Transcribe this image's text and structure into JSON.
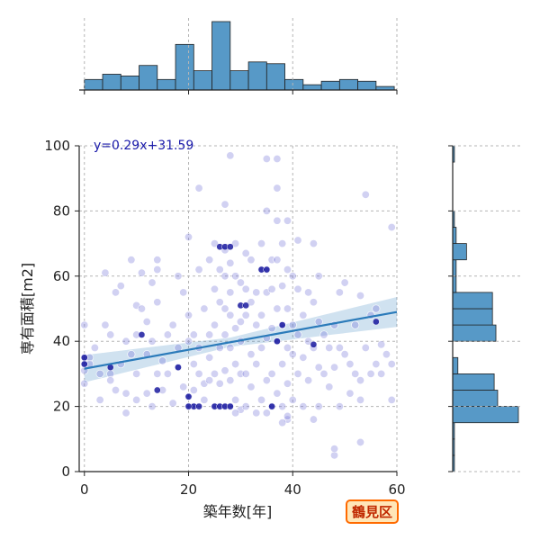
{
  "chart_data": {
    "type": "scatter",
    "xlabel": "築年数[年]",
    "ylabel": "専有面積[m2]",
    "xlim": [
      -1,
      60
    ],
    "ylim": [
      0,
      100
    ],
    "x_ticks": [
      0,
      20,
      40,
      60
    ],
    "y_ticks": [
      0,
      20,
      40,
      60,
      80,
      100
    ],
    "grid": true,
    "regression": {
      "label": "y=0.29x+31.59",
      "slope": 0.29,
      "intercept": 31.59,
      "color": "#2b7bba"
    },
    "badge": "鶴見区",
    "colors": {
      "points": "#6f6fd8",
      "dense_points": "#0b0b99",
      "hist": "#5799c7",
      "edge": "#222222"
    },
    "points": [
      [
        0,
        27
      ],
      [
        0,
        31
      ],
      [
        0,
        33
      ],
      [
        0,
        35
      ],
      [
        0,
        45
      ],
      [
        1,
        35
      ],
      [
        1,
        33
      ],
      [
        2,
        38
      ],
      [
        3,
        22
      ],
      [
        3,
        30
      ],
      [
        4,
        61
      ],
      [
        4,
        45
      ],
      [
        5,
        42
      ],
      [
        5,
        30
      ],
      [
        5,
        28
      ],
      [
        6,
        25
      ],
      [
        6,
        55
      ],
      [
        7,
        57
      ],
      [
        7,
        33
      ],
      [
        8,
        40
      ],
      [
        8,
        24
      ],
      [
        8,
        18
      ],
      [
        9,
        65
      ],
      [
        9,
        36
      ],
      [
        10,
        51
      ],
      [
        10,
        42
      ],
      [
        10,
        30
      ],
      [
        10,
        22
      ],
      [
        11,
        61
      ],
      [
        11,
        50
      ],
      [
        12,
        46
      ],
      [
        12,
        36
      ],
      [
        12,
        24
      ],
      [
        13,
        58
      ],
      [
        13,
        40
      ],
      [
        13,
        20
      ],
      [
        14,
        65
      ],
      [
        14,
        62
      ],
      [
        14,
        52
      ],
      [
        14,
        30
      ],
      [
        15,
        34
      ],
      [
        15,
        25
      ],
      [
        16,
        42
      ],
      [
        16,
        30
      ],
      [
        17,
        45
      ],
      [
        17,
        21
      ],
      [
        18,
        60
      ],
      [
        18,
        38
      ],
      [
        18,
        32
      ],
      [
        19,
        55
      ],
      [
        19,
        26
      ],
      [
        20,
        72
      ],
      [
        20,
        48
      ],
      [
        20,
        40
      ],
      [
        20,
        23
      ],
      [
        20,
        20
      ],
      [
        21,
        42
      ],
      [
        21,
        33
      ],
      [
        21,
        25
      ],
      [
        21,
        20
      ],
      [
        22,
        87
      ],
      [
        22,
        62
      ],
      [
        22,
        38
      ],
      [
        22,
        30
      ],
      [
        23,
        50
      ],
      [
        23,
        27
      ],
      [
        23,
        22
      ],
      [
        24,
        65
      ],
      [
        24,
        42
      ],
      [
        24,
        35
      ],
      [
        24,
        28
      ],
      [
        25,
        70
      ],
      [
        25,
        56
      ],
      [
        25,
        45
      ],
      [
        25,
        30
      ],
      [
        25,
        20
      ],
      [
        26,
        62
      ],
      [
        26,
        52
      ],
      [
        26,
        38
      ],
      [
        26,
        27
      ],
      [
        26,
        20
      ],
      [
        27,
        82
      ],
      [
        27,
        68
      ],
      [
        27,
        60
      ],
      [
        27,
        50
      ],
      [
        27,
        42
      ],
      [
        27,
        31
      ],
      [
        27,
        20
      ],
      [
        28,
        97
      ],
      [
        28,
        64
      ],
      [
        28,
        55
      ],
      [
        28,
        48
      ],
      [
        28,
        38
      ],
      [
        28,
        28
      ],
      [
        28,
        20
      ],
      [
        29,
        70
      ],
      [
        29,
        60
      ],
      [
        29,
        44
      ],
      [
        29,
        33
      ],
      [
        29,
        22
      ],
      [
        30,
        58
      ],
      [
        30,
        46
      ],
      [
        30,
        40
      ],
      [
        30,
        30
      ],
      [
        30,
        19
      ],
      [
        31,
        67
      ],
      [
        31,
        56
      ],
      [
        31,
        48
      ],
      [
        31,
        30
      ],
      [
        31,
        20
      ],
      [
        32,
        65
      ],
      [
        32,
        52
      ],
      [
        32,
        36
      ],
      [
        32,
        26
      ],
      [
        33,
        55
      ],
      [
        33,
        45
      ],
      [
        33,
        33
      ],
      [
        33,
        18
      ],
      [
        34,
        70
      ],
      [
        34,
        62
      ],
      [
        34,
        48
      ],
      [
        34,
        38
      ],
      [
        34,
        22
      ],
      [
        35,
        96
      ],
      [
        35,
        80
      ],
      [
        35,
        62
      ],
      [
        35,
        55
      ],
      [
        35,
        41
      ],
      [
        35,
        28
      ],
      [
        35,
        18
      ],
      [
        36,
        65
      ],
      [
        36,
        56
      ],
      [
        36,
        44
      ],
      [
        36,
        30
      ],
      [
        36,
        20
      ],
      [
        37,
        96
      ],
      [
        37,
        87
      ],
      [
        37,
        77
      ],
      [
        37,
        65
      ],
      [
        37,
        50
      ],
      [
        37,
        40
      ],
      [
        37,
        24
      ],
      [
        38,
        70
      ],
      [
        38,
        57
      ],
      [
        38,
        45
      ],
      [
        38,
        33
      ],
      [
        38,
        20
      ],
      [
        39,
        77
      ],
      [
        39,
        62
      ],
      [
        39,
        50
      ],
      [
        39,
        38
      ],
      [
        39,
        27
      ],
      [
        39,
        16
      ],
      [
        40,
        60
      ],
      [
        40,
        45
      ],
      [
        40,
        36
      ],
      [
        40,
        22
      ],
      [
        41,
        71
      ],
      [
        41,
        56
      ],
      [
        41,
        42
      ],
      [
        41,
        30
      ],
      [
        42,
        48
      ],
      [
        42,
        35
      ],
      [
        42,
        20
      ],
      [
        43,
        55
      ],
      [
        43,
        40
      ],
      [
        43,
        28
      ],
      [
        44,
        70
      ],
      [
        44,
        52
      ],
      [
        44,
        38
      ],
      [
        44,
        16
      ],
      [
        45,
        60
      ],
      [
        45,
        46
      ],
      [
        45,
        32
      ],
      [
        45,
        20
      ],
      [
        46,
        42
      ],
      [
        46,
        30
      ],
      [
        47,
        38
      ],
      [
        47,
        26
      ],
      [
        48,
        5
      ],
      [
        48,
        45
      ],
      [
        48,
        32
      ],
      [
        49,
        55
      ],
      [
        49,
        38
      ],
      [
        49,
        20
      ],
      [
        50,
        58
      ],
      [
        50,
        36
      ],
      [
        51,
        33
      ],
      [
        51,
        24
      ],
      [
        52,
        45
      ],
      [
        52,
        30
      ],
      [
        53,
        54
      ],
      [
        53,
        28
      ],
      [
        53,
        22
      ],
      [
        54,
        85
      ],
      [
        54,
        38
      ],
      [
        55,
        48
      ],
      [
        55,
        30
      ],
      [
        56,
        50
      ],
      [
        56,
        33
      ],
      [
        57,
        39
      ],
      [
        57,
        30
      ],
      [
        58,
        36
      ],
      [
        59,
        75
      ],
      [
        59,
        33
      ],
      [
        59,
        22
      ],
      [
        48,
        7
      ],
      [
        53,
        9
      ],
      [
        38,
        15
      ],
      [
        29,
        18
      ],
      [
        39,
        17
      ]
    ],
    "dense_points": [
      [
        0,
        35
      ],
      [
        0,
        33
      ],
      [
        20,
        23
      ],
      [
        21,
        20
      ],
      [
        22,
        20
      ],
      [
        25,
        20
      ],
      [
        26,
        20
      ],
      [
        27,
        20
      ],
      [
        34,
        62
      ],
      [
        35,
        62
      ],
      [
        26,
        69
      ],
      [
        27,
        69
      ],
      [
        28,
        69
      ],
      [
        11,
        42
      ],
      [
        18,
        32
      ],
      [
        30,
        51
      ],
      [
        31,
        51
      ],
      [
        14,
        25
      ],
      [
        56,
        46
      ],
      [
        38,
        45
      ],
      [
        37,
        40
      ],
      [
        36,
        20
      ],
      [
        20,
        20
      ],
      [
        28,
        20
      ],
      [
        44,
        39
      ],
      [
        5,
        32
      ]
    ],
    "top_hist": {
      "bins": [
        0,
        3.5,
        7,
        10.5,
        14,
        17.5,
        21,
        24.5,
        28,
        31.5,
        35,
        38.5,
        42,
        45.5,
        49,
        52.5,
        56,
        59.5
      ],
      "counts": [
        6,
        9,
        8,
        14,
        6,
        26,
        11,
        39,
        11,
        16,
        15,
        6,
        3,
        5,
        6,
        5,
        2
      ]
    },
    "right_hist": {
      "bins": [
        0,
        5,
        10,
        15,
        20,
        25,
        30,
        35,
        40,
        45,
        50,
        55,
        60,
        65,
        70,
        75,
        80,
        85,
        90,
        95,
        100
      ],
      "counts": [
        1,
        1,
        1,
        38,
        26,
        24,
        3,
        0,
        25,
        23,
        23,
        2,
        2,
        8,
        2,
        1,
        0,
        0,
        0,
        1
      ]
    }
  }
}
